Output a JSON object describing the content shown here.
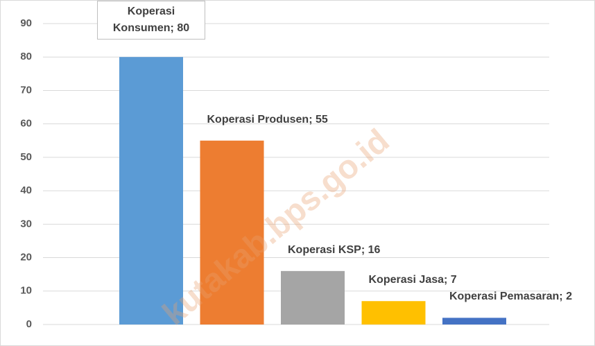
{
  "chart_data": {
    "type": "bar",
    "values": [
      80,
      55,
      16,
      7,
      2
    ],
    "value_labels": [
      "Koperasi Konsumen; 80",
      "Koperasi Produsen; 55",
      "Koperasi KSP; 16",
      "Koperasi Jasa; 7",
      "Koperasi Pemasaran; 2"
    ],
    "colors": [
      "#5b9bd5",
      "#ed7d31",
      "#a5a5a5",
      "#ffc000",
      "#4472c4"
    ],
    "ylim": [
      0,
      90
    ],
    "yticks": [
      0,
      10,
      20,
      30,
      40,
      50,
      60,
      70,
      80,
      90
    ],
    "grid": true,
    "watermark": "kutakab.bps.go.id"
  }
}
